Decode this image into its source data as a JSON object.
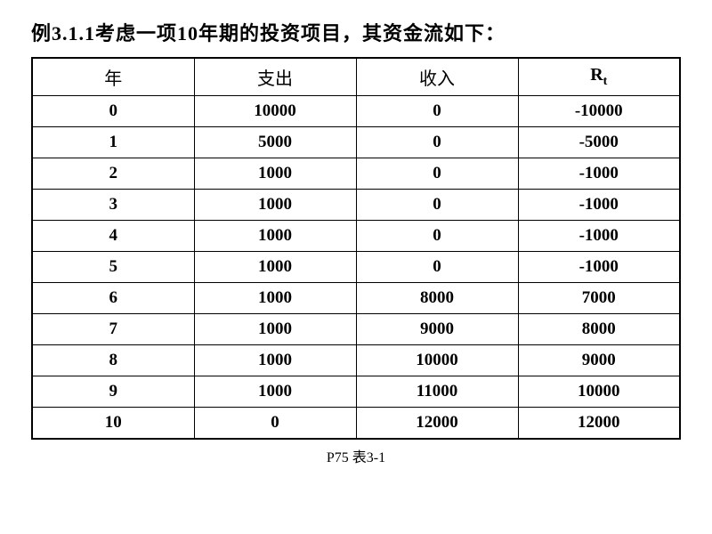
{
  "title": "例3.1.1考虑一项10年期的投资项目，其资金流如下：",
  "table": {
    "type": "table",
    "columns": [
      "年",
      "支出",
      "收入",
      "Rt"
    ],
    "column_header_rt_main": "R",
    "column_header_rt_sub": "t",
    "rows": [
      [
        "0",
        "10000",
        "0",
        "-10000"
      ],
      [
        "1",
        "5000",
        "0",
        "-5000"
      ],
      [
        "2",
        "1000",
        "0",
        "-1000"
      ],
      [
        "3",
        "1000",
        "0",
        "-1000"
      ],
      [
        "4",
        "1000",
        "0",
        "-1000"
      ],
      [
        "5",
        "1000",
        "0",
        "-1000"
      ],
      [
        "6",
        "1000",
        "8000",
        "7000"
      ],
      [
        "7",
        "1000",
        "9000",
        "8000"
      ],
      [
        "8",
        "1000",
        "10000",
        "9000"
      ],
      [
        "9",
        "1000",
        "11000",
        "10000"
      ],
      [
        "10",
        "0",
        "12000",
        "12000"
      ]
    ],
    "border_color": "#000000",
    "outer_border_width": 2.5,
    "inner_border_width": 1.5,
    "background_color": "#ffffff",
    "text_color": "#000000",
    "header_fontsize": 20,
    "cell_fontsize": 19,
    "cell_font_weight": "bold"
  },
  "caption": "P75 表3-1"
}
